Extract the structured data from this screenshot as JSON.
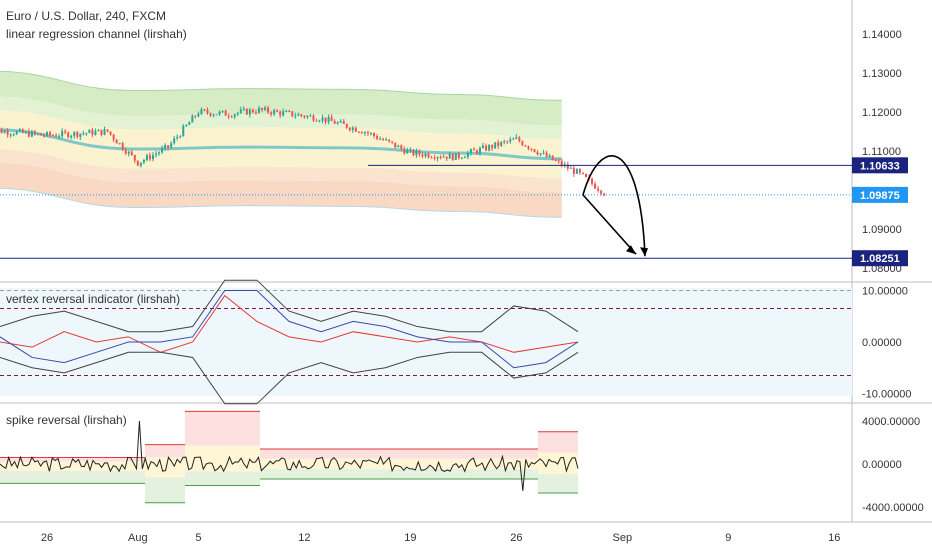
{
  "header": {
    "symbol_line": "Euro / U.S. Dollar, 240, FXCM",
    "indicator_line": "linear regression channel (lirshah)"
  },
  "panes": {
    "vertex_title": "vertex reversal indicator (lirshah)",
    "spike_title": "spike reversal (lirshah)"
  },
  "colors": {
    "up_candle": "#26a69a",
    "down_candle": "#ef5350",
    "channel_mid": "#80c8c8",
    "band_green": "#d6ecc4",
    "band_yellow": "#fbf3cf",
    "band_orange": "#f9d9c4",
    "level_line": "#1a237e",
    "last_price": "#2196f3",
    "dashed_purple": "#880e4f"
  },
  "chart_data": [
    {
      "type": "candlestick",
      "pane": "price",
      "y_ticks": [
        "1.14000",
        "1.13000",
        "1.12000",
        "1.11000",
        "1.09000",
        "1.08000"
      ],
      "ylim": [
        1.0795,
        1.1455
      ],
      "x_ticks": [
        "26",
        "Aug",
        "5",
        "12",
        "19",
        "26",
        "Sep",
        "9",
        "16"
      ],
      "price_tags": [
        {
          "label": "1.10633",
          "value": 1.10633
        },
        {
          "label": "1.09875",
          "value": 1.09875
        },
        {
          "label": "1.08251",
          "value": 1.08251
        }
      ],
      "regression_mid": [
        {
          "x": "Jul 22",
          "y": 1.1155
        },
        {
          "x": "Aug 1",
          "y": 1.1105
        },
        {
          "x": "Aug 8",
          "y": 1.111
        },
        {
          "x": "Aug 15",
          "y": 1.1108
        },
        {
          "x": "Aug 22",
          "y": 1.1095
        },
        {
          "x": "Aug 29",
          "y": 1.108
        }
      ],
      "close_path": [
        {
          "x": "Jul 22",
          "y": 1.1155
        },
        {
          "x": "Jul 26",
          "y": 1.114
        },
        {
          "x": "Jul 30",
          "y": 1.115
        },
        {
          "x": "Aug 1",
          "y": 1.107
        },
        {
          "x": "Aug 3",
          "y": 1.111
        },
        {
          "x": "Aug 5",
          "y": 1.12
        },
        {
          "x": "Aug 7",
          "y": 1.1195
        },
        {
          "x": "Aug 9",
          "y": 1.1205
        },
        {
          "x": "Aug 13",
          "y": 1.1185
        },
        {
          "x": "Aug 16",
          "y": 1.115
        },
        {
          "x": "Aug 19",
          "y": 1.1095
        },
        {
          "x": "Aug 22",
          "y": 1.1085
        },
        {
          "x": "Aug 26",
          "y": 1.113
        },
        {
          "x": "Aug 28",
          "y": 1.1085
        },
        {
          "x": "Aug 30",
          "y": 1.1045
        },
        {
          "x": "Sep 1",
          "y": 1.0988
        }
      ]
    },
    {
      "type": "line",
      "pane": "vertex",
      "y_ticks": [
        "10.00000",
        "0.00000",
        "-10.00000"
      ],
      "ylim": [
        -11,
        11
      ],
      "dashed_levels": [
        10,
        6.5,
        -6.5
      ],
      "series": [
        {
          "values": [
            0,
            -1,
            2,
            0,
            1,
            -2,
            0,
            9,
            4,
            1,
            0,
            2,
            1,
            0,
            1,
            0,
            -2,
            -1,
            0
          ]
        },
        {
          "values": [
            1,
            -3,
            -4,
            -2,
            0,
            0,
            1,
            10,
            10,
            4,
            2,
            4,
            3,
            1,
            0,
            0,
            -5,
            -4,
            0
          ]
        }
      ]
    },
    {
      "type": "line",
      "pane": "spike",
      "y_ticks": [
        "4000.00000",
        "0.00000",
        "-4000.00000"
      ],
      "ylim": [
        -5000,
        5200
      ],
      "series": [
        {
          "values": [
            0,
            200,
            -300,
            100,
            4000,
            -200,
            100,
            0,
            300,
            -100,
            100,
            0,
            200,
            -100,
            0,
            -2500,
            0
          ]
        }
      ]
    }
  ]
}
